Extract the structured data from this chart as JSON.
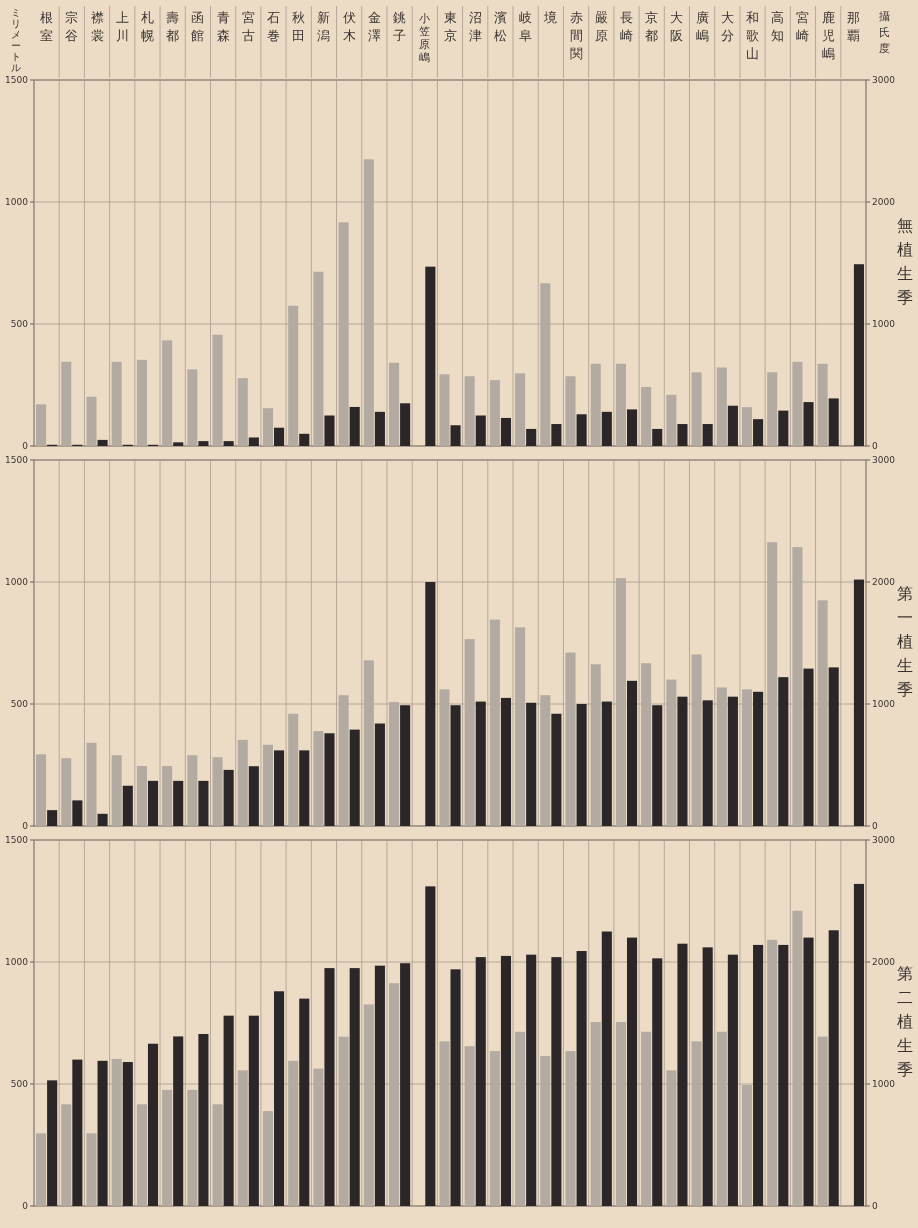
{
  "chart_data": [
    {
      "type": "bar",
      "title": "無植生季",
      "ylabel": "ミリメートル",
      "y2label": "攝氏度",
      "categories": [
        "根室",
        "宗谷",
        "襟裳",
        "上川",
        "札幌",
        "壽都",
        "函館",
        "青森",
        "宮古",
        "石巻",
        "秋田",
        "新潟",
        "伏木",
        "金澤",
        "銚子",
        "小笠原嶋",
        "東京",
        "沼津",
        "濱松",
        "岐阜",
        "境",
        "赤間関",
        "嚴原",
        "長崎",
        "京都",
        "大阪",
        "廣嶋",
        "大分",
        "和歌山",
        "高知",
        "宮崎",
        "鹿児嶋",
        "那覇"
      ],
      "series": [
        {
          "color": "#b3aba1",
          "values": [
            171,
            345,
            202,
            345,
            353,
            433,
            314,
            456,
            278,
            155,
            575,
            714,
            917,
            1175,
            341,
            null,
            294,
            286,
            270,
            298,
            667,
            286,
            337,
            337,
            242,
            210,
            302,
            322,
            159,
            302,
            345,
            337,
            null
          ]
        },
        {
          "color": "#2b2729",
          "axis": "y2",
          "values": [
            10,
            10,
            50,
            10,
            10,
            30,
            40,
            40,
            70,
            150,
            100,
            250,
            320,
            280,
            350,
            1470,
            170,
            250,
            230,
            140,
            180,
            260,
            280,
            300,
            140,
            180,
            180,
            330,
            220,
            290,
            360,
            390,
            1490
          ]
        }
      ],
      "ylim": [
        0,
        1500
      ],
      "yticks": [
        0,
        500,
        1000,
        1500
      ],
      "y2lim": [
        0,
        3000
      ],
      "y2ticks": [
        0,
        1000,
        2000,
        3000
      ],
      "grid": true
    },
    {
      "type": "bar",
      "title": "第一植生季",
      "categories": [
        "根室",
        "宗谷",
        "襟裳",
        "上川",
        "札幌",
        "壽都",
        "函館",
        "青森",
        "宮古",
        "石巻",
        "秋田",
        "新潟",
        "伏木",
        "金澤",
        "銚子",
        "小笠原嶋",
        "東京",
        "沼津",
        "濱松",
        "岐阜",
        "境",
        "赤間関",
        "嚴原",
        "長崎",
        "京都",
        "大阪",
        "廣嶋",
        "大分",
        "和歌山",
        "高知",
        "宮崎",
        "鹿児嶋",
        "那覇"
      ],
      "series": [
        {
          "color": "#b3aba1",
          "values": [
            294,
            278,
            341,
            290,
            246,
            246,
            290,
            282,
            353,
            333,
            460,
            389,
            536,
            679,
            508,
            null,
            560,
            766,
            846,
            814,
            536,
            711,
            663,
            1016,
            667,
            600,
            703,
            568,
            560,
            1163,
            1143,
            925,
            null
          ]
        },
        {
          "color": "#2b2729",
          "axis": "y2",
          "values": [
            130,
            210,
            100,
            330,
            370,
            370,
            370,
            460,
            490,
            620,
            620,
            760,
            790,
            840,
            990,
            2000,
            990,
            1020,
            1050,
            1010,
            920,
            1000,
            1020,
            1190,
            990,
            1060,
            1030,
            1060,
            1100,
            1220,
            1290,
            1300,
            2020
          ]
        }
      ],
      "ylim": [
        0,
        1500
      ],
      "yticks": [
        0,
        500,
        1000,
        1500
      ],
      "y2lim": [
        0,
        3000
      ],
      "y2ticks": [
        0,
        1000,
        2000,
        3000
      ],
      "grid": true,
      "tick_labels": "y"
    },
    {
      "type": "bar",
      "title": "第二植生季",
      "categories": [
        "根室",
        "宗谷",
        "襟裳",
        "上川",
        "札幌",
        "壽都",
        "函館",
        "青森",
        "宮古",
        "石巻",
        "秋田",
        "新潟",
        "伏木",
        "金澤",
        "銚子",
        "小笠原嶋",
        "東京",
        "沼津",
        "濱松",
        "岐阜",
        "境",
        "赤間関",
        "嚴原",
        "長崎",
        "京都",
        "大阪",
        "廣嶋",
        "大分",
        "和歌山",
        "高知",
        "宮崎",
        "鹿児嶋",
        "那覇"
      ],
      "series": [
        {
          "color": "#b3aba1",
          "values": [
            298,
            417,
            298,
            603,
            417,
            476,
            476,
            417,
            556,
            389,
            595,
            563,
            694,
            826,
            913,
            null,
            675,
            655,
            635,
            714,
            615,
            635,
            754,
            754,
            714,
            556,
            675,
            714,
            496,
            1091,
            1210,
            694,
            null
          ]
        },
        {
          "color": "#2b2729",
          "axis": "y2",
          "values": [
            1030,
            1200,
            1190,
            1180,
            1330,
            1390,
            1410,
            1560,
            1560,
            1760,
            1700,
            1950,
            1950,
            1970,
            1990,
            2620,
            1940,
            2040,
            2050,
            2060,
            2040,
            2090,
            2250,
            2200,
            2030,
            2150,
            2120,
            2060,
            2140,
            2140,
            2200,
            2260,
            2640
          ]
        }
      ],
      "ylim": [
        0,
        1500
      ],
      "yticks": [
        0,
        500,
        1000,
        1500
      ],
      "y2lim": [
        0,
        3000
      ],
      "y2ticks": [
        0,
        1000,
        2000,
        3000
      ],
      "grid": true,
      "tick_labels": "y"
    }
  ]
}
